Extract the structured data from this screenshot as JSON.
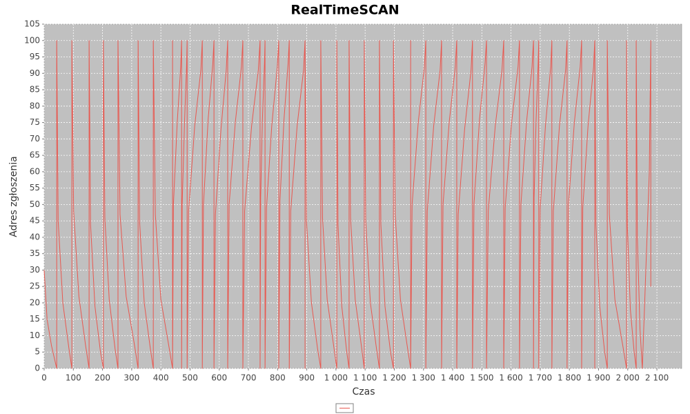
{
  "chart_data": {
    "type": "line",
    "title": "RealTimeSCAN",
    "x_label": "Czas",
    "y_label": "Adres zgłoszenia",
    "color": "#e8574f",
    "grid": true,
    "xlim": [
      0,
      2185
    ],
    "ylim": [
      0,
      105
    ],
    "xticks": [
      0,
      100,
      200,
      300,
      400,
      500,
      600,
      700,
      800,
      900,
      {
        "value": 1000,
        "label": "1 000"
      },
      {
        "value": 1100,
        "label": "1 100"
      },
      {
        "value": 1200,
        "label": "1 200"
      },
      {
        "value": 1300,
        "label": "1 300"
      },
      {
        "value": 1400,
        "label": "1 400"
      },
      {
        "value": 1500,
        "label": "1 500"
      },
      {
        "value": 1600,
        "label": "1 600"
      },
      {
        "value": 1700,
        "label": "1 700"
      },
      {
        "value": 1800,
        "label": "1 800"
      },
      {
        "value": 1900,
        "label": "1 900"
      },
      {
        "value": 2000,
        "label": "2 000"
      },
      {
        "value": 2100,
        "label": "2 100"
      }
    ],
    "yticks": [
      0,
      5,
      10,
      15,
      20,
      25,
      30,
      35,
      40,
      45,
      50,
      55,
      60,
      65,
      70,
      75,
      80,
      85,
      90,
      95,
      100,
      105
    ],
    "x": [
      0,
      10,
      25,
      43,
      43,
      48,
      64,
      85,
      95,
      95,
      101,
      119,
      142,
      154,
      154,
      159,
      174,
      193,
      203,
      203,
      208,
      223,
      243,
      253,
      253,
      260,
      281,
      308,
      322,
      322,
      327,
      343,
      364,
      374,
      374,
      381,
      400,
      427,
      440,
      440,
      440,
      443,
      456,
      468,
      471,
      471,
      473,
      481,
      488,
      490,
      490,
      495,
      516,
      537,
      542,
      542,
      546,
      562,
      578,
      582,
      582,
      587,
      606,
      624,
      629,
      629,
      634,
      655,
      676,
      681,
      681,
      687,
      711,
      734,
      740,
      740,
      742,
      748,
      755,
      757,
      757,
      762,
      780,
      799,
      804,
      804,
      808,
      822,
      836,
      840,
      840,
      845,
      867,
      889,
      894,
      894,
      894,
      899,
      916,
      937,
      948,
      948,
      954,
      970,
      992,
      1003,
      1003,
      1007,
      1020,
      1037,
      1045,
      1045,
      1050,
      1066,
      1087,
      1097,
      1097,
      1102,
      1118,
      1139,
      1149,
      1149,
      1154,
      1168,
      1187,
      1197,
      1197,
      1203,
      1221,
      1244,
      1256,
      1256,
      1256,
      1261,
      1282,
      1303,
      1308,
      1308,
      1313,
      1335,
      1357,
      1362,
      1362,
      1367,
      1388,
      1409,
      1414,
      1414,
      1419,
      1441,
      1463,
      1468,
      1468,
      1473,
      1492,
      1511,
      1516,
      1516,
      1522,
      1546,
      1569,
      1575,
      1575,
      1580,
      1602,
      1624,
      1629,
      1629,
      1634,
      1653,
      1672,
      1677,
      1677,
      1679,
      1686,
      1693,
      1695,
      1695,
      1700,
      1718,
      1736,
      1740,
      1740,
      1745,
      1766,
      1787,
      1792,
      1792,
      1797,
      1817,
      1837,
      1842,
      1842,
      1846,
      1864,
      1883,
      1887,
      1887,
      1887,
      1891,
      1904,
      1921,
      1930,
      1930,
      1937,
      1956,
      1983,
      1996,
      1996,
      1999,
      2009,
      2022,
      2029,
      2029,
      2033,
      2042,
      2050,
      2062,
      2074,
      2079,
      2079
    ],
    "values": [
      30,
      15,
      7,
      0,
      100,
      45,
      20,
      6,
      0,
      100,
      48,
      22,
      7,
      0,
      100,
      44,
      19,
      5,
      0,
      100,
      46,
      21,
      6,
      0,
      100,
      47,
      22,
      8,
      0,
      100,
      45,
      20,
      6,
      0,
      100,
      47,
      21,
      7,
      0,
      100,
      0,
      50,
      75,
      92,
      100,
      0,
      50,
      75,
      92,
      100,
      0,
      48,
      74,
      91,
      100,
      0,
      50,
      76,
      93,
      100,
      0,
      47,
      73,
      91,
      100,
      0,
      50,
      75,
      92,
      100,
      0,
      48,
      74,
      91,
      100,
      0,
      52,
      76,
      93,
      100,
      0,
      49,
      74,
      92,
      100,
      0,
      51,
      76,
      93,
      100,
      0,
      48,
      74,
      91,
      100,
      0,
      100,
      45,
      20,
      6,
      0,
      100,
      46,
      21,
      7,
      0,
      100,
      44,
      19,
      5,
      0,
      100,
      46,
      21,
      7,
      0,
      100,
      45,
      20,
      6,
      0,
      100,
      44,
      19,
      5,
      0,
      100,
      47,
      21,
      7,
      0,
      100,
      0,
      50,
      75,
      92,
      100,
      0,
      48,
      74,
      91,
      100,
      0,
      50,
      75,
      92,
      100,
      0,
      47,
      73,
      91,
      100,
      0,
      50,
      76,
      93,
      100,
      0,
      48,
      74,
      91,
      100,
      0,
      49,
      75,
      92,
      100,
      0,
      50,
      75,
      92,
      100,
      0,
      52,
      76,
      93,
      100,
      0,
      49,
      74,
      92,
      100,
      0,
      48,
      74,
      91,
      100,
      0,
      50,
      75,
      92,
      100,
      0,
      49,
      74,
      92,
      100,
      0,
      100,
      44,
      19,
      5,
      0,
      100,
      47,
      21,
      7,
      0,
      100,
      43,
      18,
      5,
      0,
      100,
      40,
      12,
      0,
      30,
      60,
      100,
      25
    ]
  }
}
